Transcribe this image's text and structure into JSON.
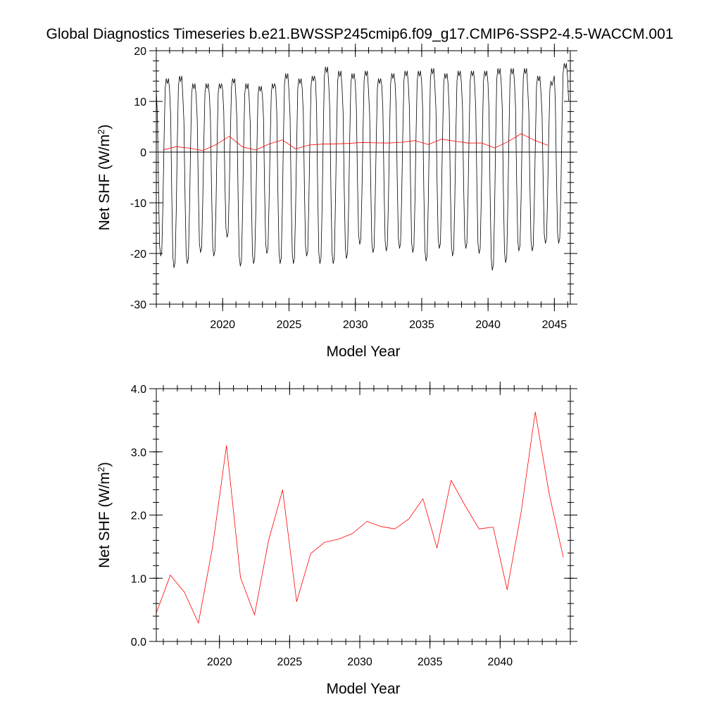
{
  "title": "Global Diagnostics Timeseries b.e21.BWSSP245cmip6.f09_g17.CMIP6-SSP2-4.5-WACCM.001",
  "chart_data": [
    {
      "type": "line",
      "ylabel_main": "Net SHF (W/m",
      "ylabel_sup": "2",
      "ylabel_close": ")",
      "xlabel": "Model Year",
      "xlim": [
        2015.0,
        2046.2
      ],
      "ylim": [
        -30,
        20
      ],
      "x_ticks": [
        "2020",
        "2025",
        "2030",
        "2035",
        "2040",
        "2045"
      ],
      "y_ticks": [
        "-30",
        "-20",
        "-10",
        "0",
        "10",
        "20"
      ],
      "zero_line": true,
      "monthly_cycle": [
        12.0,
        7.0,
        -8.0,
        -19.5,
        -21.5,
        -20.5,
        -11.0,
        2.0,
        12.5,
        14.5,
        13.5,
        14.5
      ],
      "series": [
        {
          "color": "#000000",
          "monthly_start": 2015.0,
          "monthly_step": 0.0833,
          "month_count": 374,
          "yearly_min": [
            -20.5,
            -22.8,
            -22.0,
            -19.8,
            -20.5,
            -16.8,
            -22.5,
            -22.0,
            -20.0,
            -22.0,
            -22.0,
            -20.5,
            -22.0,
            -22.0,
            -21.0,
            -18.2,
            -19.8,
            -19.5,
            -19.0,
            -19.8,
            -21.5,
            -19.0,
            -20.5,
            -19.0,
            -20.0,
            -23.3,
            -21.8,
            -19.5,
            -19.5,
            -18.0,
            -18.0
          ],
          "yearly_max": [
            14.5,
            15.0,
            13.5,
            13.5,
            13.5,
            14.5,
            13.5,
            13.0,
            13.5,
            15.5,
            14.5,
            15.0,
            16.8,
            16.0,
            15.5,
            16.0,
            14.5,
            15.5,
            16.0,
            16.0,
            16.5,
            15.5,
            16.0,
            16.0,
            16.0,
            16.5,
            16.5,
            16.5,
            15.0,
            14.0,
            17.5
          ]
        },
        {
          "color": "#ff0000",
          "x": [
            2015.5,
            2016.5,
            2017.5,
            2018.5,
            2019.5,
            2020.5,
            2021.5,
            2022.5,
            2023.5,
            2024.5,
            2025.5,
            2026.5,
            2027.5,
            2028.5,
            2029.5,
            2030.5,
            2031.5,
            2032.5,
            2033.5,
            2034.5,
            2035.5,
            2036.5,
            2037.5,
            2038.5,
            2039.5,
            2040.5,
            2041.5,
            2042.5,
            2043.5,
            2044.5
          ],
          "values": [
            0.45,
            1.05,
            0.78,
            0.29,
            1.48,
            3.1,
            1.01,
            0.42,
            1.6,
            2.4,
            0.63,
            1.39,
            1.57,
            1.62,
            1.71,
            1.9,
            1.82,
            1.78,
            1.94,
            2.26,
            1.48,
            2.55,
            2.15,
            1.78,
            1.81,
            0.82,
            2.05,
            3.63,
            2.33,
            1.33
          ]
        }
      ]
    },
    {
      "type": "line",
      "ylabel_main": "Net SHF (W/m",
      "ylabel_sup": "2",
      "ylabel_close": ")",
      "xlabel": "Model Year",
      "xlim": [
        2015.5,
        2045.0
      ],
      "ylim": [
        0.0,
        4.0
      ],
      "x_ticks": [
        "2020",
        "2025",
        "2030",
        "2035",
        "2040"
      ],
      "y_ticks": [
        "0.0",
        "1.0",
        "2.0",
        "3.0",
        "4.0"
      ],
      "series": [
        {
          "color": "#ff0000",
          "x": [
            2015.5,
            2016.5,
            2017.5,
            2018.5,
            2019.5,
            2020.5,
            2021.5,
            2022.5,
            2023.5,
            2024.5,
            2025.5,
            2026.5,
            2027.5,
            2028.5,
            2029.5,
            2030.5,
            2031.5,
            2032.5,
            2033.5,
            2034.5,
            2035.5,
            2036.5,
            2037.5,
            2038.5,
            2039.5,
            2040.5,
            2041.5,
            2042.5,
            2043.5,
            2044.5
          ],
          "values": [
            0.45,
            1.05,
            0.78,
            0.29,
            1.48,
            3.1,
            1.01,
            0.42,
            1.6,
            2.4,
            0.63,
            1.39,
            1.57,
            1.62,
            1.71,
            1.9,
            1.82,
            1.78,
            1.94,
            2.26,
            1.48,
            2.55,
            2.15,
            1.78,
            1.81,
            0.82,
            2.05,
            3.63,
            2.33,
            1.33
          ]
        }
      ]
    }
  ]
}
